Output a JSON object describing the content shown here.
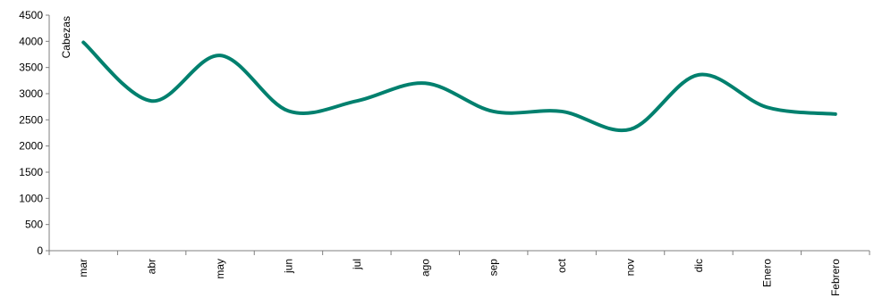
{
  "chart_data": {
    "type": "line",
    "categories": [
      "mar",
      "abr",
      "may",
      "jun",
      "jul",
      "ago",
      "sep",
      "oct",
      "nov",
      "dic",
      "Enero",
      "Febrero"
    ],
    "series": [
      {
        "values": [
          3980,
          2860,
          3730,
          2670,
          2860,
          3200,
          2660,
          2660,
          2320,
          3360,
          2740,
          2610
        ]
      }
    ],
    "title": "",
    "xlabel": "",
    "ylabel": "Cabezas",
    "ylim": [
      0,
      4500
    ],
    "yticks": [
      0,
      500,
      1000,
      1500,
      2000,
      2500,
      3000,
      3500,
      4000,
      4500
    ],
    "grid": false,
    "legend": "none",
    "colors": {
      "line": "#00806E",
      "axis": "#7f7f7f"
    }
  }
}
